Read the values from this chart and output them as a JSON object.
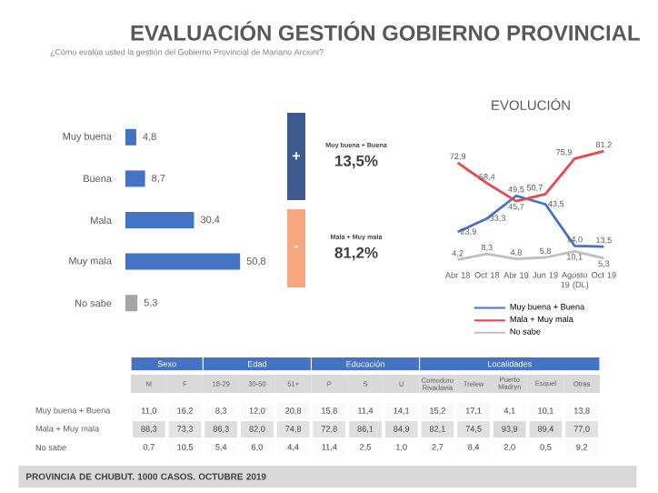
{
  "chart_data": [
    {
      "type": "bar",
      "title": "EVALUACIÓN GESTIÓN GOBIERNO PROVINCIAL",
      "subtitle": "¿Cómo evalúa usted la gestión del Gobierno Provincial de Mariano Arcioni?",
      "orientation": "horizontal",
      "categories": [
        "Muy buena",
        "Buena",
        "Mala",
        "Muy mala",
        "No sabe"
      ],
      "values": [
        4.8,
        8.7,
        30.4,
        50.8,
        5.3
      ],
      "value_labels": [
        "4,8",
        "8,7",
        "30,4",
        "50,8",
        "5,3"
      ],
      "colors": [
        "#4472c4",
        "#4472c4",
        "#4472c4",
        "#4472c4",
        "#a5a5a5"
      ],
      "tick_labels": "y"
    },
    {
      "type": "other",
      "categories": [
        "Muy buena + Buena",
        "Mala + Muy mala"
      ],
      "value_labels": [
        "13,5%",
        "81,2%"
      ],
      "colors": [
        "#3e5a8e",
        "#f7a77f"
      ],
      "annotations": [
        "+",
        "-"
      ]
    },
    {
      "type": "line",
      "title": "EVOLUCIÓN",
      "categories": [
        "Abr 18",
        "Oct 18",
        "Abr 19",
        "Jun 19",
        "Agosto 19 (DL)",
        "Oct 19"
      ],
      "series": [
        {
          "name": "Muy buena + Buena",
          "color": "#4472c4",
          "values": [
            23.9,
            33.3,
            49.5,
            43.5,
            14.0,
            13.5
          ],
          "value_labels": [
            "23,9",
            "33,3",
            "49,5",
            "43,5",
            "14,0",
            "13,5"
          ]
        },
        {
          "name": "Mala + Muy mala",
          "color": "#e8474f",
          "values": [
            72.9,
            58.4,
            45.7,
            50.7,
            75.9,
            81.2
          ],
          "value_labels": [
            "72,9",
            "58,4",
            "45,7",
            "50,7",
            "75,9",
            "81,2"
          ]
        },
        {
          "name": "No sabe",
          "color": "#bfbfbf",
          "values": [
            4.2,
            8.3,
            4.8,
            5.8,
            10.1,
            5.3
          ],
          "value_labels": [
            "4,2",
            "8,3",
            "4,8",
            "5,8",
            "10,1",
            "5,3"
          ]
        }
      ],
      "legend": "bottom",
      "tick_labels": "x",
      "marker": "none",
      "line_style": "solid"
    },
    {
      "type": "heatmap",
      "categories": [
        "M",
        "F",
        "18-29",
        "30-50",
        "51+",
        "P",
        "S",
        "U",
        "Comodoro Rivadavia",
        "Trelew",
        "Puerto Madryn",
        "Esquel",
        "Otras"
      ],
      "y_categories": [
        "Muy buena + Buena",
        "Mala + Muy mala",
        "No sabe"
      ],
      "cells": [
        [
          11.0,
          16.2,
          8.3,
          12.0,
          20.8,
          15.8,
          11.4,
          14.1,
          15.2,
          17.1,
          4.1,
          10.1,
          13.8
        ],
        [
          88.3,
          73.3,
          86.3,
          82.0,
          74.8,
          72.8,
          86.1,
          84.9,
          82.1,
          74.5,
          93.9,
          89.4,
          77.0
        ],
        [
          0.7,
          10.5,
          5.4,
          6.0,
          4.4,
          11.4,
          2.5,
          1.0,
          2.7,
          8.4,
          2.0,
          0.5,
          9.2
        ]
      ],
      "cell_labels": [
        [
          "11,0",
          "16,2",
          "8,3",
          "12,0",
          "20,8",
          "15,8",
          "11,4",
          "14,1",
          "15,2",
          "17,1",
          "4,1",
          "10,1",
          "13,8"
        ],
        [
          "88,3",
          "73,3",
          "86,3",
          "82,0",
          "74,8",
          "72,8",
          "86,1",
          "84,9",
          "82,1",
          "74,5",
          "93,9",
          "89,4",
          "77,0"
        ],
        [
          "0,7",
          "10,5",
          "5,4",
          "6,0",
          "4,4",
          "11,4",
          "2,5",
          "1,0",
          "2,7",
          "8,4",
          "2,0",
          "0,5",
          "9,2"
        ]
      ],
      "annotations": [
        "Sexo",
        "Edad",
        "Educación",
        "Localidades",
        "PROVINCIA DE CHUBUT. 1000 CASOS. OCTUBRE 2019"
      ]
    }
  ]
}
